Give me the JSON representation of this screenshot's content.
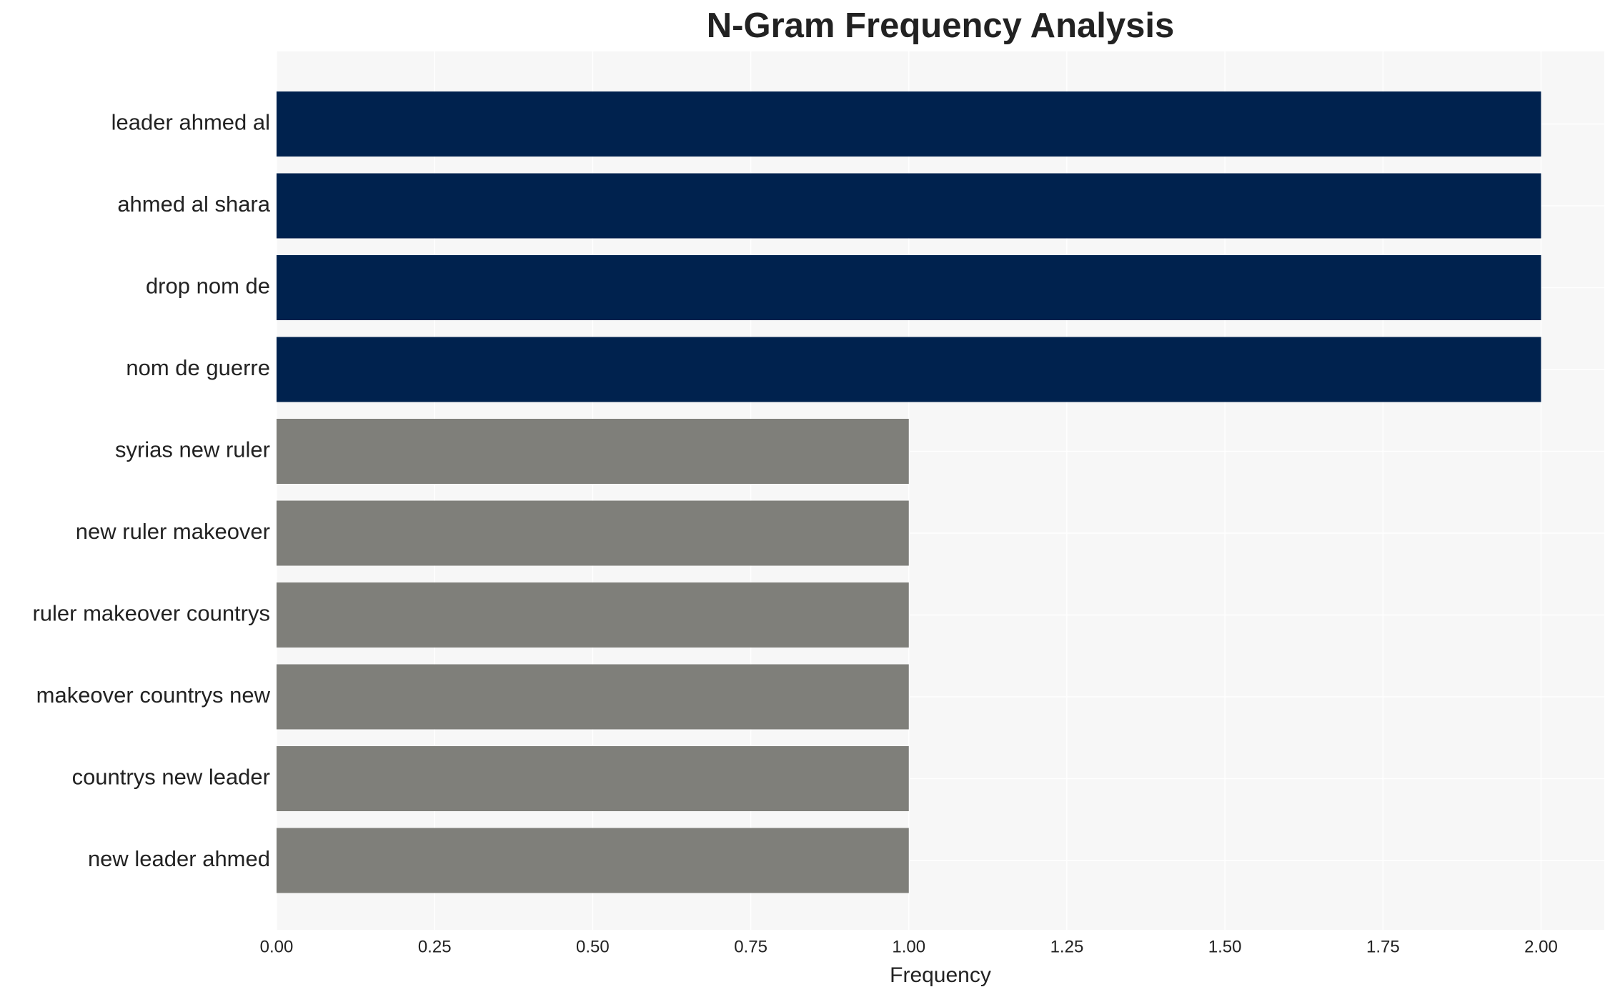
{
  "chart_data": {
    "type": "barh",
    "title": "N-Gram Frequency Analysis",
    "xlabel": "Frequency",
    "categories": [
      "leader ahmed al",
      "ahmed al shara",
      "drop nom de",
      "nom de guerre",
      "syrias new ruler",
      "new ruler makeover",
      "ruler makeover countrys",
      "makeover countrys new",
      "countrys new leader",
      "new leader ahmed"
    ],
    "values": [
      2,
      2,
      2,
      2,
      1,
      1,
      1,
      1,
      1,
      1
    ],
    "colors": [
      "#00224e",
      "#00224e",
      "#00224e",
      "#00224e",
      "#7f7f7a",
      "#7f7f7a",
      "#7f7f7a",
      "#7f7f7a",
      "#7f7f7a",
      "#7f7f7a"
    ],
    "xlim": [
      0,
      2.1
    ],
    "xticks": [
      {
        "value": 0,
        "label": "0.00"
      },
      {
        "value": 0.25,
        "label": "0.25"
      },
      {
        "value": 0.5,
        "label": "0.50"
      },
      {
        "value": 0.75,
        "label": "0.75"
      },
      {
        "value": 1,
        "label": "1.00"
      },
      {
        "value": 1.25,
        "label": "1.25"
      },
      {
        "value": 1.5,
        "label": "1.50"
      },
      {
        "value": 1.75,
        "label": "1.75"
      },
      {
        "value": 2,
        "label": "2.00"
      }
    ],
    "grid": true
  }
}
